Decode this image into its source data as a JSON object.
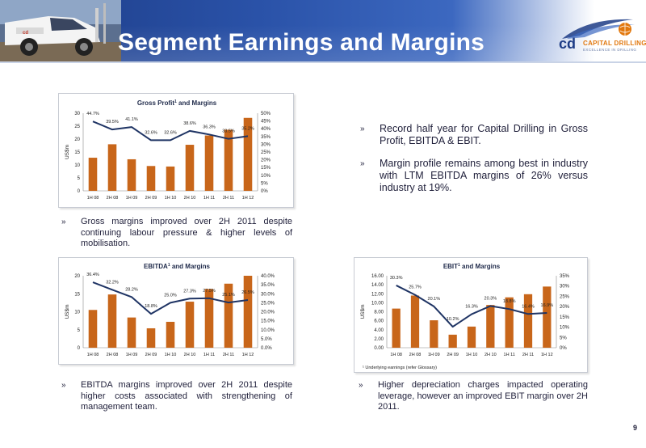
{
  "page": {
    "title": "Segment Earnings and Margins",
    "page_number": "9"
  },
  "logo": {
    "name": "CAPITAL DRILLING",
    "tagline": "EXCELLENCE IN DRILLING",
    "brand_color": "#e2780e"
  },
  "colors": {
    "bar": "#c8661a",
    "line": "#1f3464",
    "header_blue": "#2a52a8"
  },
  "bullets": {
    "right_top": [
      "Record half year for Capital Drilling in Gross Profit, EBITDA & EBIT.",
      "Margin profile remains among best in industry with LTM EBITDA margins of 26% versus industry at 19%."
    ],
    "gross": "Gross margins improved over 2H 2011 despite continuing labour pressure & higher levels of mobilisation.",
    "ebitda": "EBITDA margins improved over 2H 2011 despite higher costs associated with strengthening of management team.",
    "ebit": "Higher depreciation charges impacted operating leverage, however an improved EBIT margin over 2H 2011.",
    "marker": "»"
  },
  "chart_data": [
    {
      "id": "gross",
      "type": "bar",
      "title": "Gross Profit",
      "title_sup": "1",
      "title_rest": " and Margins",
      "ylabel": "US$m",
      "categories": [
        "1H 08",
        "2H 08",
        "1H 09",
        "2H 09",
        "1H 10",
        "2H 10",
        "1H 11",
        "2H 11",
        "1H 12"
      ],
      "series": [
        {
          "kind": "bar",
          "axis": "left",
          "values": [
            12.8,
            18.0,
            12.2,
            9.6,
            9.4,
            17.8,
            21.4,
            23.6,
            28.2
          ]
        },
        {
          "kind": "line",
          "axis": "right",
          "values": [
            44.7,
            39.5,
            41.1,
            32.6,
            32.6,
            38.6,
            36.3,
            33.5,
            35.2
          ]
        }
      ],
      "data_labels": [
        "44.7%",
        "39.5%",
        "41.1%",
        "32.6%",
        "32.6%",
        "38.6%",
        "36.3%",
        "33.5%",
        "35.2%"
      ],
      "left_ticks": [
        "0",
        "5",
        "10",
        "15",
        "20",
        "25",
        "30"
      ],
      "right_ticks": [
        "0%",
        "5%",
        "10%",
        "15%",
        "20%",
        "25%",
        "30%",
        "35%",
        "40%",
        "45%",
        "50%"
      ],
      "ylim": [
        0,
        30
      ],
      "y2lim": [
        0,
        50
      ],
      "footnote": ""
    },
    {
      "id": "ebitda",
      "type": "bar",
      "title": "EBITDA",
      "title_sup": "1",
      "title_rest": " and Margins",
      "ylabel": "US$m",
      "categories": [
        "1H 08",
        "2H 08",
        "1H 09",
        "2H 09",
        "1H 10",
        "2H 10",
        "1H 11",
        "2H 11",
        "1H 12"
      ],
      "series": [
        {
          "kind": "bar",
          "axis": "left",
          "values": [
            10.5,
            14.8,
            8.4,
            5.4,
            7.2,
            12.8,
            16.3,
            17.8,
            20.0
          ]
        },
        {
          "kind": "line",
          "axis": "right",
          "values": [
            36.4,
            32.2,
            28.2,
            18.8,
            25.0,
            27.3,
            27.5,
            25.1,
            26.5
          ]
        }
      ],
      "data_labels": [
        "36.4%",
        "32.2%",
        "28.2%",
        "18.8%",
        "25.0%",
        "27.3%",
        "27.5%",
        "25.1%",
        "26.5%"
      ],
      "left_ticks": [
        "0",
        "5",
        "10",
        "15",
        "20"
      ],
      "right_ticks": [
        "0.0%",
        "5.0%",
        "10.0%",
        "15.0%",
        "20.0%",
        "25.0%",
        "30.0%",
        "35.0%",
        "40.0%"
      ],
      "ylim": [
        0,
        20
      ],
      "y2lim": [
        0,
        40
      ],
      "footnote": ""
    },
    {
      "id": "ebit",
      "type": "bar",
      "title": "EBIT",
      "title_sup": "1",
      "title_rest": " and Margins",
      "ylabel": "US$m",
      "categories": [
        "1H 08",
        "2H 08",
        "1H 09",
        "2H 09",
        "1H 10",
        "2H 10",
        "1H 11",
        "2H 11",
        "1H 12"
      ],
      "series": [
        {
          "kind": "bar",
          "axis": "left",
          "values": [
            8.7,
            11.6,
            6.1,
            2.9,
            4.7,
            9.5,
            11.2,
            11.9,
            13.6
          ]
        },
        {
          "kind": "line",
          "axis": "right",
          "values": [
            30.3,
            25.7,
            20.1,
            10.2,
            16.3,
            20.3,
            18.8,
            16.4,
            16.9
          ]
        }
      ],
      "data_labels": [
        "30.3%",
        "25.7%",
        "20.1%",
        "10.2%",
        "16.3%",
        "20.3%",
        "18.8%",
        "16.4%",
        "16.9%"
      ],
      "left_ticks": [
        "0.00",
        "2.00",
        "4.00",
        "6.00",
        "8.00",
        "10.00",
        "12.00",
        "14.00",
        "16.00"
      ],
      "right_ticks": [
        "0%",
        "5%",
        "10%",
        "15%",
        "20%",
        "25%",
        "30%",
        "35%"
      ],
      "ylim": [
        0,
        16
      ],
      "y2lim": [
        0,
        35
      ],
      "footnote": "¹ Underlying earnings (refer Glossary)"
    }
  ]
}
